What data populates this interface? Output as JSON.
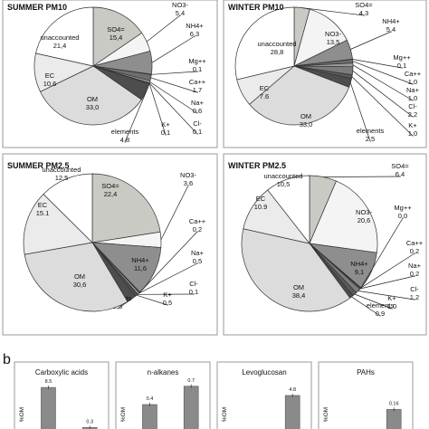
{
  "panel_a_label": "",
  "panel_b_label": "b",
  "chart_data": [
    {
      "type": "pie",
      "title": "SUMMER PM10",
      "categories": [
        "SO4=",
        "NO3-",
        "NH4+",
        "Mg++",
        "Ca++",
        "Na+",
        "Cl-",
        "K+",
        "elements",
        "OM",
        "EC",
        "unaccounted"
      ],
      "values": [
        15.4,
        5.4,
        6.3,
        0.1,
        1.7,
        0.6,
        0.1,
        0.1,
        4.8,
        33.0,
        10.6,
        21.4
      ],
      "value_labels": [
        "15,4",
        "5,4",
        "6,3",
        "0,1",
        "1,7",
        "0,6",
        "0,1",
        "0,1",
        "4,8",
        "33,0",
        "10.6",
        "21,4"
      ],
      "colors": [
        "#c9cac4",
        "#f4f4f4",
        "#8e8e8e",
        "#aaaaaa",
        "#6e6e6e",
        "#9c9c9c",
        "#7c7c7c",
        "#5a5a5a",
        "#4d4d4d",
        "#dcdcdc",
        "#ebebeb",
        "#ffffff"
      ]
    },
    {
      "type": "pie",
      "title": "WINTER PM10",
      "categories": [
        "SO4=",
        "NO3-",
        "NH4+",
        "Mg++",
        "Ca++",
        "Na+",
        "Cl-",
        "K+",
        "elements",
        "OM",
        "EC",
        "unaccounted"
      ],
      "values": [
        4.3,
        13.5,
        5.4,
        0.1,
        1.0,
        1.0,
        2.2,
        1.0,
        2.5,
        33.0,
        7.6,
        28.8
      ],
      "value_labels": [
        "4,3",
        "13,5",
        "5,4",
        "0,1",
        "1,0",
        "1,0",
        "2,2",
        "1,0",
        "2,5",
        "33,0",
        "7.6",
        "28,8"
      ],
      "colors": [
        "#c9cac4",
        "#f4f4f4",
        "#8e8e8e",
        "#aaaaaa",
        "#6e6e6e",
        "#9c9c9c",
        "#7c7c7c",
        "#5a5a5a",
        "#4d4d4d",
        "#dcdcdc",
        "#ebebeb",
        "#ffffff"
      ]
    },
    {
      "type": "pie",
      "title": "SUMMER PM2.5",
      "categories": [
        "SO4=",
        "NO3-",
        "NH4+",
        "Ca++",
        "Na+",
        "Cl-",
        "K+",
        "elements",
        "OM",
        "EC",
        "unaccounted"
      ],
      "values": [
        22.4,
        3.6,
        11.6,
        0.2,
        0.5,
        0.1,
        0.5,
        2.3,
        30.6,
        15.1,
        12.5
      ],
      "value_labels": [
        "22,4",
        "3,6",
        "11,6",
        "0,2",
        "0,5",
        "0,1",
        "0,5",
        "2,3",
        "30,6",
        "15.1",
        "12,5"
      ],
      "colors": [
        "#c9cac4",
        "#f4f4f4",
        "#8e8e8e",
        "#6e6e6e",
        "#9c9c9c",
        "#7c7c7c",
        "#5a5a5a",
        "#4d4d4d",
        "#dcdcdc",
        "#ebebeb",
        "#ffffff"
      ]
    },
    {
      "type": "pie",
      "title": "WINTER PM2.5",
      "categories": [
        "SO4=",
        "NO3-",
        "NH4+",
        "Mg++",
        "Ca++",
        "Na+",
        "Cl-",
        "K+",
        "elements",
        "OM",
        "EC",
        "unaccounted"
      ],
      "values": [
        6.4,
        20.6,
        9.1,
        0.0,
        0.2,
        0.2,
        1.2,
        1.0,
        0.9,
        38.4,
        10.9,
        10.5
      ],
      "value_labels": [
        "6,4",
        "20,6",
        "9,1",
        "0,0",
        "0,2",
        "0,2",
        "1,2",
        "1,0",
        "0,9",
        "38,4",
        "10.9",
        "10,5"
      ],
      "colors": [
        "#c9cac4",
        "#f4f4f4",
        "#8e8e8e",
        "#aaaaaa",
        "#6e6e6e",
        "#9c9c9c",
        "#7c7c7c",
        "#5a5a5a",
        "#4d4d4d",
        "#dcdcdc",
        "#ebebeb",
        "#ffffff"
      ]
    },
    {
      "type": "bar",
      "title": "Carboxylic acids",
      "ylabel": "%OM",
      "categories": [
        "bar1",
        "bar2"
      ],
      "values": [
        8.5,
        0.3
      ],
      "value_labels": [
        "8.5",
        "0.3"
      ],
      "ylim": [
        0,
        10
      ]
    },
    {
      "type": "bar",
      "title": "n-alkanes",
      "ylabel": "%OM",
      "categories": [
        "bar1",
        "bar2"
      ],
      "values": [
        0.4,
        0.7
      ],
      "value_labels": [
        "0.4",
        "0.7"
      ],
      "ylim": [
        0,
        0.8
      ]
    },
    {
      "type": "bar",
      "title": "Levoglucosan",
      "ylabel": "%OM",
      "categories": [
        "bar1",
        "bar2"
      ],
      "values": [
        0.0,
        4.8
      ],
      "value_labels": [
        "",
        "4.8"
      ],
      "ylim": [
        0,
        7
      ]
    },
    {
      "type": "bar",
      "title": "PAHs",
      "ylabel": "%OM",
      "categories": [
        "bar1",
        "bar2"
      ],
      "values": [
        0.0,
        0.16
      ],
      "value_labels": [
        "",
        "0.16"
      ],
      "ylim": [
        0,
        0.4
      ]
    }
  ]
}
